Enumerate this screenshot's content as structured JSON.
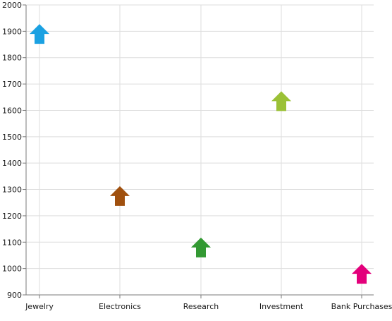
{
  "chart_data": {
    "type": "scatter",
    "marker": "arrow-up",
    "categories": [
      "Jewelry",
      "Electronics",
      "Research",
      "Investment",
      "Bank Purchases"
    ],
    "values": [
      1890,
      1275,
      1080,
      1635,
      980
    ],
    "colors": [
      "#1ba1e2",
      "#a0500e",
      "#339933",
      "#9bc136",
      "#e3007b"
    ],
    "ylim": [
      900,
      2000
    ],
    "ytick_step": 100,
    "yticks": [
      "900",
      "1000",
      "1100",
      "1200",
      "1300",
      "1400",
      "1500",
      "1600",
      "1700",
      "1800",
      "1900",
      "2000"
    ],
    "grid": true,
    "title": "",
    "xlabel": "",
    "ylabel": ""
  }
}
